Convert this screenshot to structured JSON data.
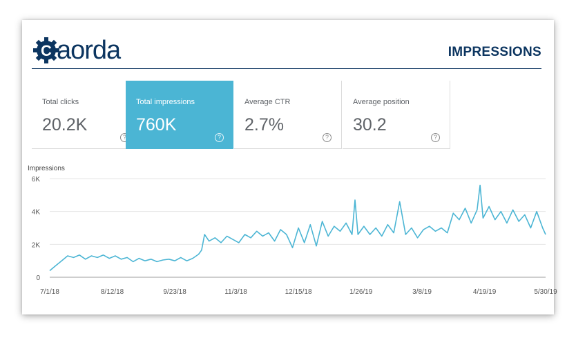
{
  "header": {
    "logo_text": "aorda",
    "logo_letter": "C",
    "title": "IMPRESSIONS"
  },
  "metrics": [
    {
      "label": "Total clicks",
      "value": "20.2K",
      "active": false
    },
    {
      "label": "Total impressions",
      "value": "760K",
      "active": true
    },
    {
      "label": "Average CTR",
      "value": "2.7%",
      "active": false
    },
    {
      "label": "Average position",
      "value": "30.2",
      "active": false
    }
  ],
  "help_glyph": "?",
  "colors": {
    "accent": "#4bb5d4",
    "brand": "#0c3560",
    "line": "#4bb5d4"
  },
  "chart_data": {
    "type": "line",
    "ylabel": "Impressions",
    "ylim": [
      0,
      6000
    ],
    "yticks": [
      0,
      2000,
      4000,
      6000
    ],
    "ytick_labels": [
      "0",
      "2K",
      "4K",
      "6K"
    ],
    "xlim": [
      "2018-07-01",
      "2019-05-30"
    ],
    "xticks": [
      "2018-07-01",
      "2018-08-12",
      "2018-09-23",
      "2018-11-03",
      "2018-12-15",
      "2019-01-26",
      "2019-03-08",
      "2019-04-19",
      "2019-05-30"
    ],
    "xtick_labels": [
      "7/1/18",
      "8/12/18",
      "9/23/18",
      "11/3/18",
      "12/15/18",
      "1/26/19",
      "3/8/19",
      "4/19/19",
      "5/30/19"
    ],
    "grid": true,
    "series": [
      {
        "x": [
          "2018-07-01",
          "2018-07-05",
          "2018-07-09",
          "2018-07-13",
          "2018-07-17",
          "2018-07-21",
          "2018-07-25",
          "2018-07-29",
          "2018-08-02",
          "2018-08-06",
          "2018-08-10",
          "2018-08-14",
          "2018-08-18",
          "2018-08-22",
          "2018-08-26",
          "2018-08-30",
          "2018-09-03",
          "2018-09-07",
          "2018-09-11",
          "2018-09-15",
          "2018-09-19",
          "2018-09-23",
          "2018-09-27",
          "2018-10-01",
          "2018-10-05",
          "2018-10-09",
          "2018-10-11",
          "2018-10-13",
          "2018-10-16",
          "2018-10-20",
          "2018-10-24",
          "2018-10-28",
          "2018-11-01",
          "2018-11-05",
          "2018-11-09",
          "2018-11-13",
          "2018-11-17",
          "2018-11-21",
          "2018-11-25",
          "2018-11-29",
          "2018-12-03",
          "2018-12-07",
          "2018-12-11",
          "2018-12-15",
          "2018-12-19",
          "2018-12-23",
          "2018-12-27",
          "2018-12-31",
          "2019-01-04",
          "2019-01-08",
          "2019-01-12",
          "2019-01-16",
          "2019-01-20",
          "2019-01-22",
          "2019-01-24",
          "2019-01-28",
          "2019-02-01",
          "2019-02-05",
          "2019-02-09",
          "2019-02-13",
          "2019-02-17",
          "2019-02-21",
          "2019-02-25",
          "2019-03-01",
          "2019-03-05",
          "2019-03-09",
          "2019-03-13",
          "2019-03-17",
          "2019-03-21",
          "2019-03-25",
          "2019-03-29",
          "2019-04-02",
          "2019-04-06",
          "2019-04-10",
          "2019-04-14",
          "2019-04-16",
          "2019-04-18",
          "2019-04-22",
          "2019-04-26",
          "2019-04-30",
          "2019-05-04",
          "2019-05-08",
          "2019-05-12",
          "2019-05-16",
          "2019-05-20",
          "2019-05-24",
          "2019-05-28",
          "2019-05-30"
        ],
        "y": [
          400,
          700,
          1000,
          1300,
          1200,
          1350,
          1100,
          1300,
          1200,
          1350,
          1150,
          1300,
          1100,
          1200,
          950,
          1150,
          1000,
          1100,
          950,
          1050,
          1100,
          1000,
          1200,
          1000,
          1150,
          1400,
          1650,
          2600,
          2200,
          2400,
          2100,
          2500,
          2300,
          2100,
          2600,
          2400,
          2800,
          2500,
          2700,
          2200,
          2900,
          2600,
          1800,
          3000,
          2100,
          3200,
          1900,
          3400,
          2500,
          3100,
          2800,
          3300,
          2600,
          4700,
          2600,
          3100,
          2600,
          3000,
          2500,
          3200,
          2700,
          4600,
          2600,
          3000,
          2400,
          2900,
          3100,
          2800,
          3000,
          2700,
          3900,
          3500,
          4200,
          3300,
          4100,
          5600,
          3600,
          4300,
          3500,
          4000,
          3300,
          4100,
          3400,
          3800,
          3000,
          4000,
          3000,
          2600
        ]
      }
    ]
  }
}
